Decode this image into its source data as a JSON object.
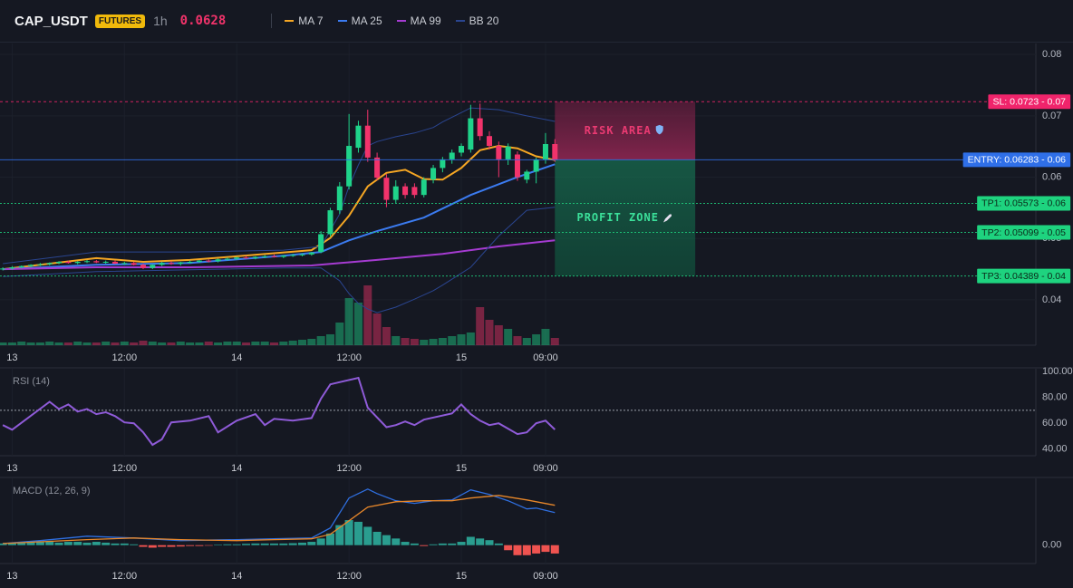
{
  "header": {
    "symbol": "CAP_USDT",
    "badge": "FUTURES",
    "interval": "1h",
    "price": 0.0628
  },
  "chart_data": [
    {
      "type": "candlestick",
      "xlim": [
        -0.3,
        110.4
      ],
      "xticks": [
        {
          "value": 1,
          "label": "13"
        },
        {
          "value": 13,
          "label": "12:00"
        },
        {
          "value": 25,
          "label": "14"
        },
        {
          "value": 37,
          "label": "12:00"
        },
        {
          "value": 49,
          "label": "15"
        },
        {
          "value": 58,
          "label": "09:00"
        }
      ],
      "ylim": [
        0.0326,
        0.0818
      ],
      "yticks": [
        0.04,
        0.05,
        0.06,
        0.07,
        0.08
      ],
      "grid": true,
      "up_color": "#1fd38a",
      "down_color": "#f2336b",
      "ohlc": [
        [
          0.045,
          0.0453,
          0.0448,
          0.0451
        ],
        [
          0.0451,
          0.0455,
          0.0449,
          0.0453
        ],
        [
          0.0453,
          0.0456,
          0.0451,
          0.0455
        ],
        [
          0.0455,
          0.0458,
          0.0453,
          0.0457
        ],
        [
          0.0457,
          0.046,
          0.0455,
          0.0458
        ],
        [
          0.0458,
          0.0461,
          0.0456,
          0.046
        ],
        [
          0.046,
          0.0463,
          0.0458,
          0.0462
        ],
        [
          0.0462,
          0.0464,
          0.0459,
          0.046
        ],
        [
          0.046,
          0.0463,
          0.0458,
          0.0462
        ],
        [
          0.0462,
          0.0465,
          0.046,
          0.0463
        ],
        [
          0.0463,
          0.0465,
          0.046,
          0.0461
        ],
        [
          0.0461,
          0.0464,
          0.0459,
          0.0462
        ],
        [
          0.0462,
          0.0464,
          0.0458,
          0.0459
        ],
        [
          0.0459,
          0.0462,
          0.0457,
          0.046
        ],
        [
          0.046,
          0.0462,
          0.0456,
          0.0457
        ],
        [
          0.0457,
          0.0459,
          0.045,
          0.0452
        ],
        [
          0.0452,
          0.0458,
          0.045,
          0.0457
        ],
        [
          0.0457,
          0.0462,
          0.0455,
          0.046
        ],
        [
          0.046,
          0.0463,
          0.0457,
          0.0459
        ],
        [
          0.0459,
          0.0462,
          0.0456,
          0.0461
        ],
        [
          0.0461,
          0.0464,
          0.0459,
          0.0462
        ],
        [
          0.0462,
          0.0465,
          0.046,
          0.0464
        ],
        [
          0.0464,
          0.0466,
          0.0461,
          0.0463
        ],
        [
          0.0463,
          0.0467,
          0.0461,
          0.0466
        ],
        [
          0.0466,
          0.0469,
          0.0464,
          0.0467
        ],
        [
          0.0467,
          0.047,
          0.0465,
          0.0469
        ],
        [
          0.0469,
          0.0472,
          0.0467,
          0.0468
        ],
        [
          0.0468,
          0.0471,
          0.0466,
          0.047
        ],
        [
          0.047,
          0.0473,
          0.0468,
          0.0471
        ],
        [
          0.0471,
          0.0474,
          0.0469,
          0.047
        ],
        [
          0.047,
          0.0473,
          0.0468,
          0.0472
        ],
        [
          0.0472,
          0.0475,
          0.047,
          0.0473
        ],
        [
          0.0473,
          0.0476,
          0.0471,
          0.0474
        ],
        [
          0.0474,
          0.0478,
          0.0472,
          0.0477
        ],
        [
          0.0478,
          0.0512,
          0.0476,
          0.0507
        ],
        [
          0.0507,
          0.055,
          0.0503,
          0.0546
        ],
        [
          0.0546,
          0.0592,
          0.054,
          0.0585
        ],
        [
          0.0585,
          0.0703,
          0.058,
          0.0651
        ],
        [
          0.0648,
          0.0692,
          0.064,
          0.0684
        ],
        [
          0.0684,
          0.071,
          0.0625,
          0.0632
        ],
        [
          0.0632,
          0.064,
          0.0595,
          0.0599
        ],
        [
          0.0599,
          0.0605,
          0.0551,
          0.0563
        ],
        [
          0.0563,
          0.0595,
          0.0558,
          0.0585
        ],
        [
          0.0585,
          0.059,
          0.0565,
          0.0571
        ],
        [
          0.0584,
          0.059,
          0.0566,
          0.0571
        ],
        [
          0.0571,
          0.06,
          0.0567,
          0.0596
        ],
        [
          0.0596,
          0.062,
          0.059,
          0.0615
        ],
        [
          0.0615,
          0.0633,
          0.0608,
          0.0629
        ],
        [
          0.0629,
          0.0645,
          0.0622,
          0.064
        ],
        [
          0.064,
          0.0655,
          0.0634,
          0.0651
        ],
        [
          0.0645,
          0.0718,
          0.064,
          0.0696
        ],
        [
          0.0696,
          0.072,
          0.066,
          0.0667
        ],
        [
          0.0667,
          0.0675,
          0.0645,
          0.0651
        ],
        [
          0.0651,
          0.0658,
          0.06,
          0.0629
        ],
        [
          0.0629,
          0.0655,
          0.062,
          0.065
        ],
        [
          0.0637,
          0.0642,
          0.0594,
          0.06
        ],
        [
          0.0596,
          0.0612,
          0.059,
          0.0609
        ],
        [
          0.0609,
          0.0632,
          0.059,
          0.0629
        ],
        [
          0.0629,
          0.0672,
          0.0622,
          0.0654
        ],
        [
          0.0654,
          0.0662,
          0.0625,
          0.0628
        ]
      ],
      "volume": [
        3,
        3,
        4,
        3,
        3,
        4,
        3,
        3,
        4,
        3,
        3,
        4,
        3,
        4,
        3,
        5,
        4,
        3,
        3,
        4,
        3,
        3,
        4,
        3,
        4,
        4,
        3,
        4,
        4,
        3,
        4,
        5,
        6,
        7,
        10,
        12,
        25,
        52,
        47,
        66,
        35,
        20,
        10,
        8,
        7,
        6,
        7,
        8,
        10,
        12,
        14,
        42,
        28,
        22,
        18,
        10,
        8,
        12,
        18,
        8
      ],
      "volume_lim": [
        0,
        333
      ],
      "series": [
        {
          "name": "MA 7",
          "color": "#f5a623",
          "x": [
            0,
            10,
            15,
            20,
            25,
            33,
            35,
            37,
            39,
            41,
            43,
            45,
            47,
            49,
            51,
            53,
            55,
            57,
            59
          ],
          "values": [
            0.045,
            0.0468,
            0.0462,
            0.0465,
            0.0471,
            0.0481,
            0.0501,
            0.0537,
            0.0585,
            0.0607,
            0.0612,
            0.0597,
            0.0596,
            0.0615,
            0.0644,
            0.0651,
            0.0647,
            0.0634,
            0.0628
          ]
        },
        {
          "name": "MA 25",
          "color": "#3b7bf0",
          "x": [
            0,
            10,
            20,
            30,
            34,
            37,
            40,
            45,
            50,
            55,
            59
          ],
          "values": [
            0.045,
            0.0457,
            0.046,
            0.0472,
            0.0478,
            0.0497,
            0.0512,
            0.0534,
            0.0571,
            0.06,
            0.0621
          ]
        },
        {
          "name": "MA 99",
          "color": "#a53bd1",
          "x": [
            0,
            10,
            20,
            33,
            40,
            47,
            53,
            59
          ],
          "values": [
            0.045,
            0.0453,
            0.0453,
            0.0456,
            0.0465,
            0.0475,
            0.0487,
            0.0497
          ]
        },
        {
          "name": "BB 20",
          "color": "#2a4590",
          "x": [
            0,
            10,
            20,
            30,
            34,
            36,
            37,
            38,
            39,
            40,
            42,
            44,
            46,
            47,
            50,
            53,
            56,
            59
          ],
          "values": [
            0.0459,
            0.0478,
            0.0478,
            0.0481,
            0.0487,
            0.054,
            0.0585,
            0.062,
            0.0651,
            0.0658,
            0.0666,
            0.0672,
            0.0681,
            0.069,
            0.0713,
            0.071,
            0.07,
            0.0691
          ],
          "lower": [
            0.0438,
            0.0446,
            0.0449,
            0.0452,
            0.0452,
            0.0431,
            0.041,
            0.0394,
            0.0385,
            0.0379,
            0.0388,
            0.0401,
            0.0415,
            0.0424,
            0.0453,
            0.0504,
            0.0546,
            0.0551
          ]
        }
      ],
      "levels": [
        {
          "label": "SL: 0.0723 - 0.07",
          "value": 0.0723,
          "color": "#f0246b",
          "text_color": "#ffffff",
          "style": "dashed"
        },
        {
          "label": "ENTRY: 0.06283 - 0.06",
          "value": 0.06283,
          "color": "#2f6fe8",
          "text_color": "#ffffff",
          "style": "solid"
        },
        {
          "label": "TP1: 0.05573 - 0.06",
          "value": 0.05573,
          "color": "#1ed37f",
          "text_color": "#0b2a1a",
          "style": "dotted"
        },
        {
          "label": "TP2: 0.05099 - 0.05",
          "value": 0.05099,
          "color": "#1ed37f",
          "text_color": "#0b2a1a",
          "style": "dotted"
        },
        {
          "label": "TP3: 0.04389 - 0.04",
          "value": 0.04389,
          "color": "#1ed37f",
          "text_color": "#0b2a1a",
          "style": "dotted"
        }
      ],
      "zones": [
        {
          "label": "RISK AREA",
          "from": 0.06283,
          "to": 0.0723,
          "start": 59,
          "end": 74,
          "color": "#ea3a72"
        },
        {
          "label": "PROFIT ZONE",
          "from": 0.04389,
          "to": 0.06283,
          "start": 59,
          "end": 74,
          "color": "#3be09a"
        }
      ]
    },
    {
      "type": "line",
      "title": "RSI (14)",
      "xlim": [
        -0.3,
        110.4
      ],
      "xticks": [
        {
          "value": 1,
          "label": "13"
        },
        {
          "value": 13,
          "label": "12:00"
        },
        {
          "value": 25,
          "label": "14"
        },
        {
          "value": 37,
          "label": "12:00"
        },
        {
          "value": 49,
          "label": "15"
        },
        {
          "value": 58,
          "label": "09:00"
        }
      ],
      "ylim": [
        35,
        102
      ],
      "yticks": [
        {
          "value": 40,
          "label": "40.00"
        },
        {
          "value": 60,
          "label": "60.00"
        },
        {
          "value": 80,
          "label": "80.00"
        },
        {
          "value": 100,
          "label": "100.00"
        }
      ],
      "hline": 70,
      "series": [
        {
          "color": "#8f5bd8",
          "x": [
            0,
            1,
            5,
            6,
            7,
            8,
            9,
            10,
            11,
            12,
            13,
            14,
            15,
            16,
            17,
            18,
            20,
            22,
            23,
            25,
            27,
            28,
            29,
            31,
            33,
            34,
            35,
            38,
            39,
            41,
            42,
            43,
            44,
            45,
            48,
            49,
            50,
            51,
            52,
            53,
            55,
            56,
            57,
            58,
            59
          ],
          "values": [
            58.6,
            55,
            76.5,
            71,
            74.5,
            69,
            71,
            67,
            68.5,
            65.5,
            60.7,
            60,
            53,
            43.4,
            47.6,
            60.7,
            62,
            65.5,
            53,
            62,
            67,
            58.6,
            63.4,
            62,
            64,
            79,
            90,
            95,
            72,
            57,
            58.6,
            61.4,
            58.6,
            62.8,
            67.6,
            74.5,
            67,
            62,
            58.6,
            60,
            51.7,
            53,
            60,
            62,
            55.2
          ]
        }
      ]
    },
    {
      "type": "macd",
      "title": "MACD (12, 26, 9)",
      "xlim": [
        -0.3,
        110.4
      ],
      "xticks": [
        {
          "value": 1,
          "label": "13"
        },
        {
          "value": 13,
          "label": "12:00"
        },
        {
          "value": 25,
          "label": "14"
        },
        {
          "value": 37,
          "label": "12:00"
        },
        {
          "value": 49,
          "label": "15"
        },
        {
          "value": 58,
          "label": "09:00"
        }
      ],
      "ylim": [
        -0.0011,
        0.004
      ],
      "yticks": [
        {
          "value": 0,
          "label": "0.00"
        }
      ],
      "series": [
        {
          "color": "#2f6fe0",
          "x": [
            0,
            4,
            9,
            14,
            19,
            25,
            29,
            33,
            35,
            37,
            39,
            40,
            42,
            44,
            46,
            48,
            50,
            52,
            54,
            56,
            57,
            59
          ],
          "values": [
            0.0001,
            0.00027,
            0.00054,
            0.00043,
            0.00027,
            0.00033,
            0.00038,
            0.00043,
            0.00103,
            0.00282,
            0.00336,
            0.00309,
            0.00266,
            0.0025,
            0.00266,
            0.00271,
            0.00331,
            0.00304,
            0.00266,
            0.00217,
            0.00222,
            0.00195
          ]
        },
        {
          "color": "#e8872a",
          "x": [
            0,
            9,
            14,
            19,
            25,
            29,
            33,
            35,
            37,
            39,
            42,
            45,
            48,
            50,
            53,
            56,
            59
          ],
          "values": [
            0.0001,
            0.00033,
            0.00043,
            0.00033,
            0.00027,
            0.00033,
            0.00038,
            0.00065,
            0.00146,
            0.00228,
            0.0026,
            0.00266,
            0.00266,
            0.00282,
            0.00298,
            0.00271,
            0.00239
          ]
        }
      ],
      "histogram": {
        "up_color": "#2a9d8f",
        "down_color": "#ef5350",
        "values": [
          0.0001,
          0.00015,
          0.0002,
          0.00025,
          0.0002,
          0.0002,
          0.00015,
          0.0002,
          0.0002,
          0.00015,
          0.0002,
          0.00015,
          0.0001,
          0.0001,
          5e-05,
          -0.0001,
          -0.00015,
          -0.0001,
          -0.0001,
          -8e-05,
          -5e-05,
          -5e-05,
          -3e-05,
          3e-05,
          5e-05,
          5e-05,
          8e-05,
          0.0001,
          0.0001,
          0.0001,
          0.0001,
          0.00012,
          0.00015,
          0.0002,
          0.0004,
          0.0007,
          0.0012,
          0.0015,
          0.0014,
          0.0011,
          0.0008,
          0.0006,
          0.0004,
          0.0002,
          0.0001,
          -5e-05,
          5e-05,
          0.0001,
          0.0001,
          0.0002,
          0.0005,
          0.0004,
          0.0003,
          0.0001,
          -0.0003,
          -0.0006,
          -0.0006,
          -0.0005,
          -0.0004,
          -0.0005
        ]
      }
    }
  ]
}
